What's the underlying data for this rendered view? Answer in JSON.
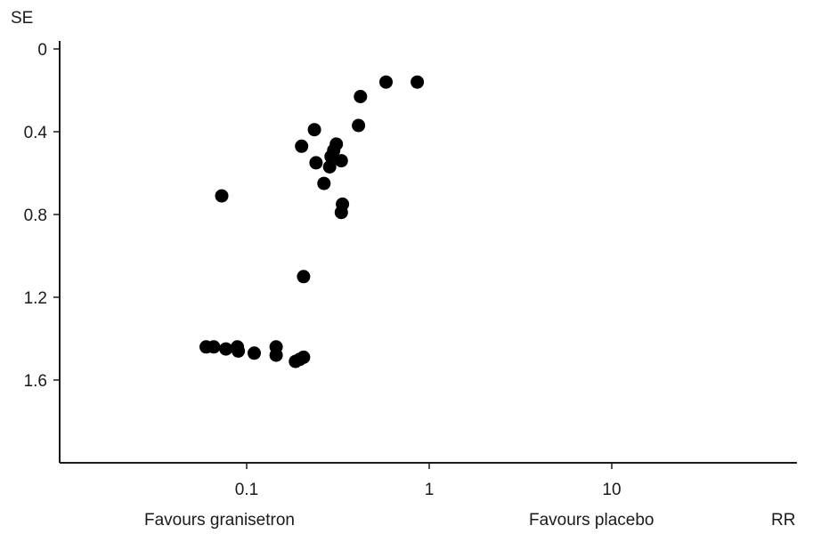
{
  "chart_data": {
    "type": "scatter",
    "xlabel": "RR",
    "ylabel": "SE",
    "x_scale": "log",
    "y_inverted": true,
    "xlim": [
      0.01,
      100
    ],
    "ylim": [
      0,
      2
    ],
    "x_ticks": [
      {
        "value": 0.1,
        "label": "0.1"
      },
      {
        "value": 1,
        "label": "1"
      },
      {
        "value": 10,
        "label": "10"
      }
    ],
    "y_ticks": [
      {
        "value": 0,
        "label": "0"
      },
      {
        "value": 0.4,
        "label": "0.4"
      },
      {
        "value": 0.8,
        "label": "0.8"
      },
      {
        "value": 1.2,
        "label": "1.2"
      },
      {
        "value": 1.6,
        "label": "1.6"
      }
    ],
    "annotations": {
      "left": "Favours granisetron",
      "right": "Favours placebo"
    },
    "grid": false,
    "points": [
      {
        "x": 0.86,
        "y": 0.16
      },
      {
        "x": 0.58,
        "y": 0.16
      },
      {
        "x": 0.42,
        "y": 0.23
      },
      {
        "x": 0.41,
        "y": 0.37
      },
      {
        "x": 0.235,
        "y": 0.39
      },
      {
        "x": 0.2,
        "y": 0.47
      },
      {
        "x": 0.31,
        "y": 0.46
      },
      {
        "x": 0.3,
        "y": 0.49
      },
      {
        "x": 0.29,
        "y": 0.52
      },
      {
        "x": 0.33,
        "y": 0.54
      },
      {
        "x": 0.24,
        "y": 0.55
      },
      {
        "x": 0.285,
        "y": 0.57
      },
      {
        "x": 0.265,
        "y": 0.65
      },
      {
        "x": 0.073,
        "y": 0.71
      },
      {
        "x": 0.335,
        "y": 0.75
      },
      {
        "x": 0.33,
        "y": 0.79
      },
      {
        "x": 0.205,
        "y": 1.1
      },
      {
        "x": 0.06,
        "y": 1.44
      },
      {
        "x": 0.066,
        "y": 1.44
      },
      {
        "x": 0.077,
        "y": 1.45
      },
      {
        "x": 0.089,
        "y": 1.44
      },
      {
        "x": 0.09,
        "y": 1.46
      },
      {
        "x": 0.11,
        "y": 1.47
      },
      {
        "x": 0.145,
        "y": 1.44
      },
      {
        "x": 0.145,
        "y": 1.48
      },
      {
        "x": 0.185,
        "y": 1.51
      },
      {
        "x": 0.195,
        "y": 1.5
      },
      {
        "x": 0.205,
        "y": 1.49
      }
    ]
  }
}
